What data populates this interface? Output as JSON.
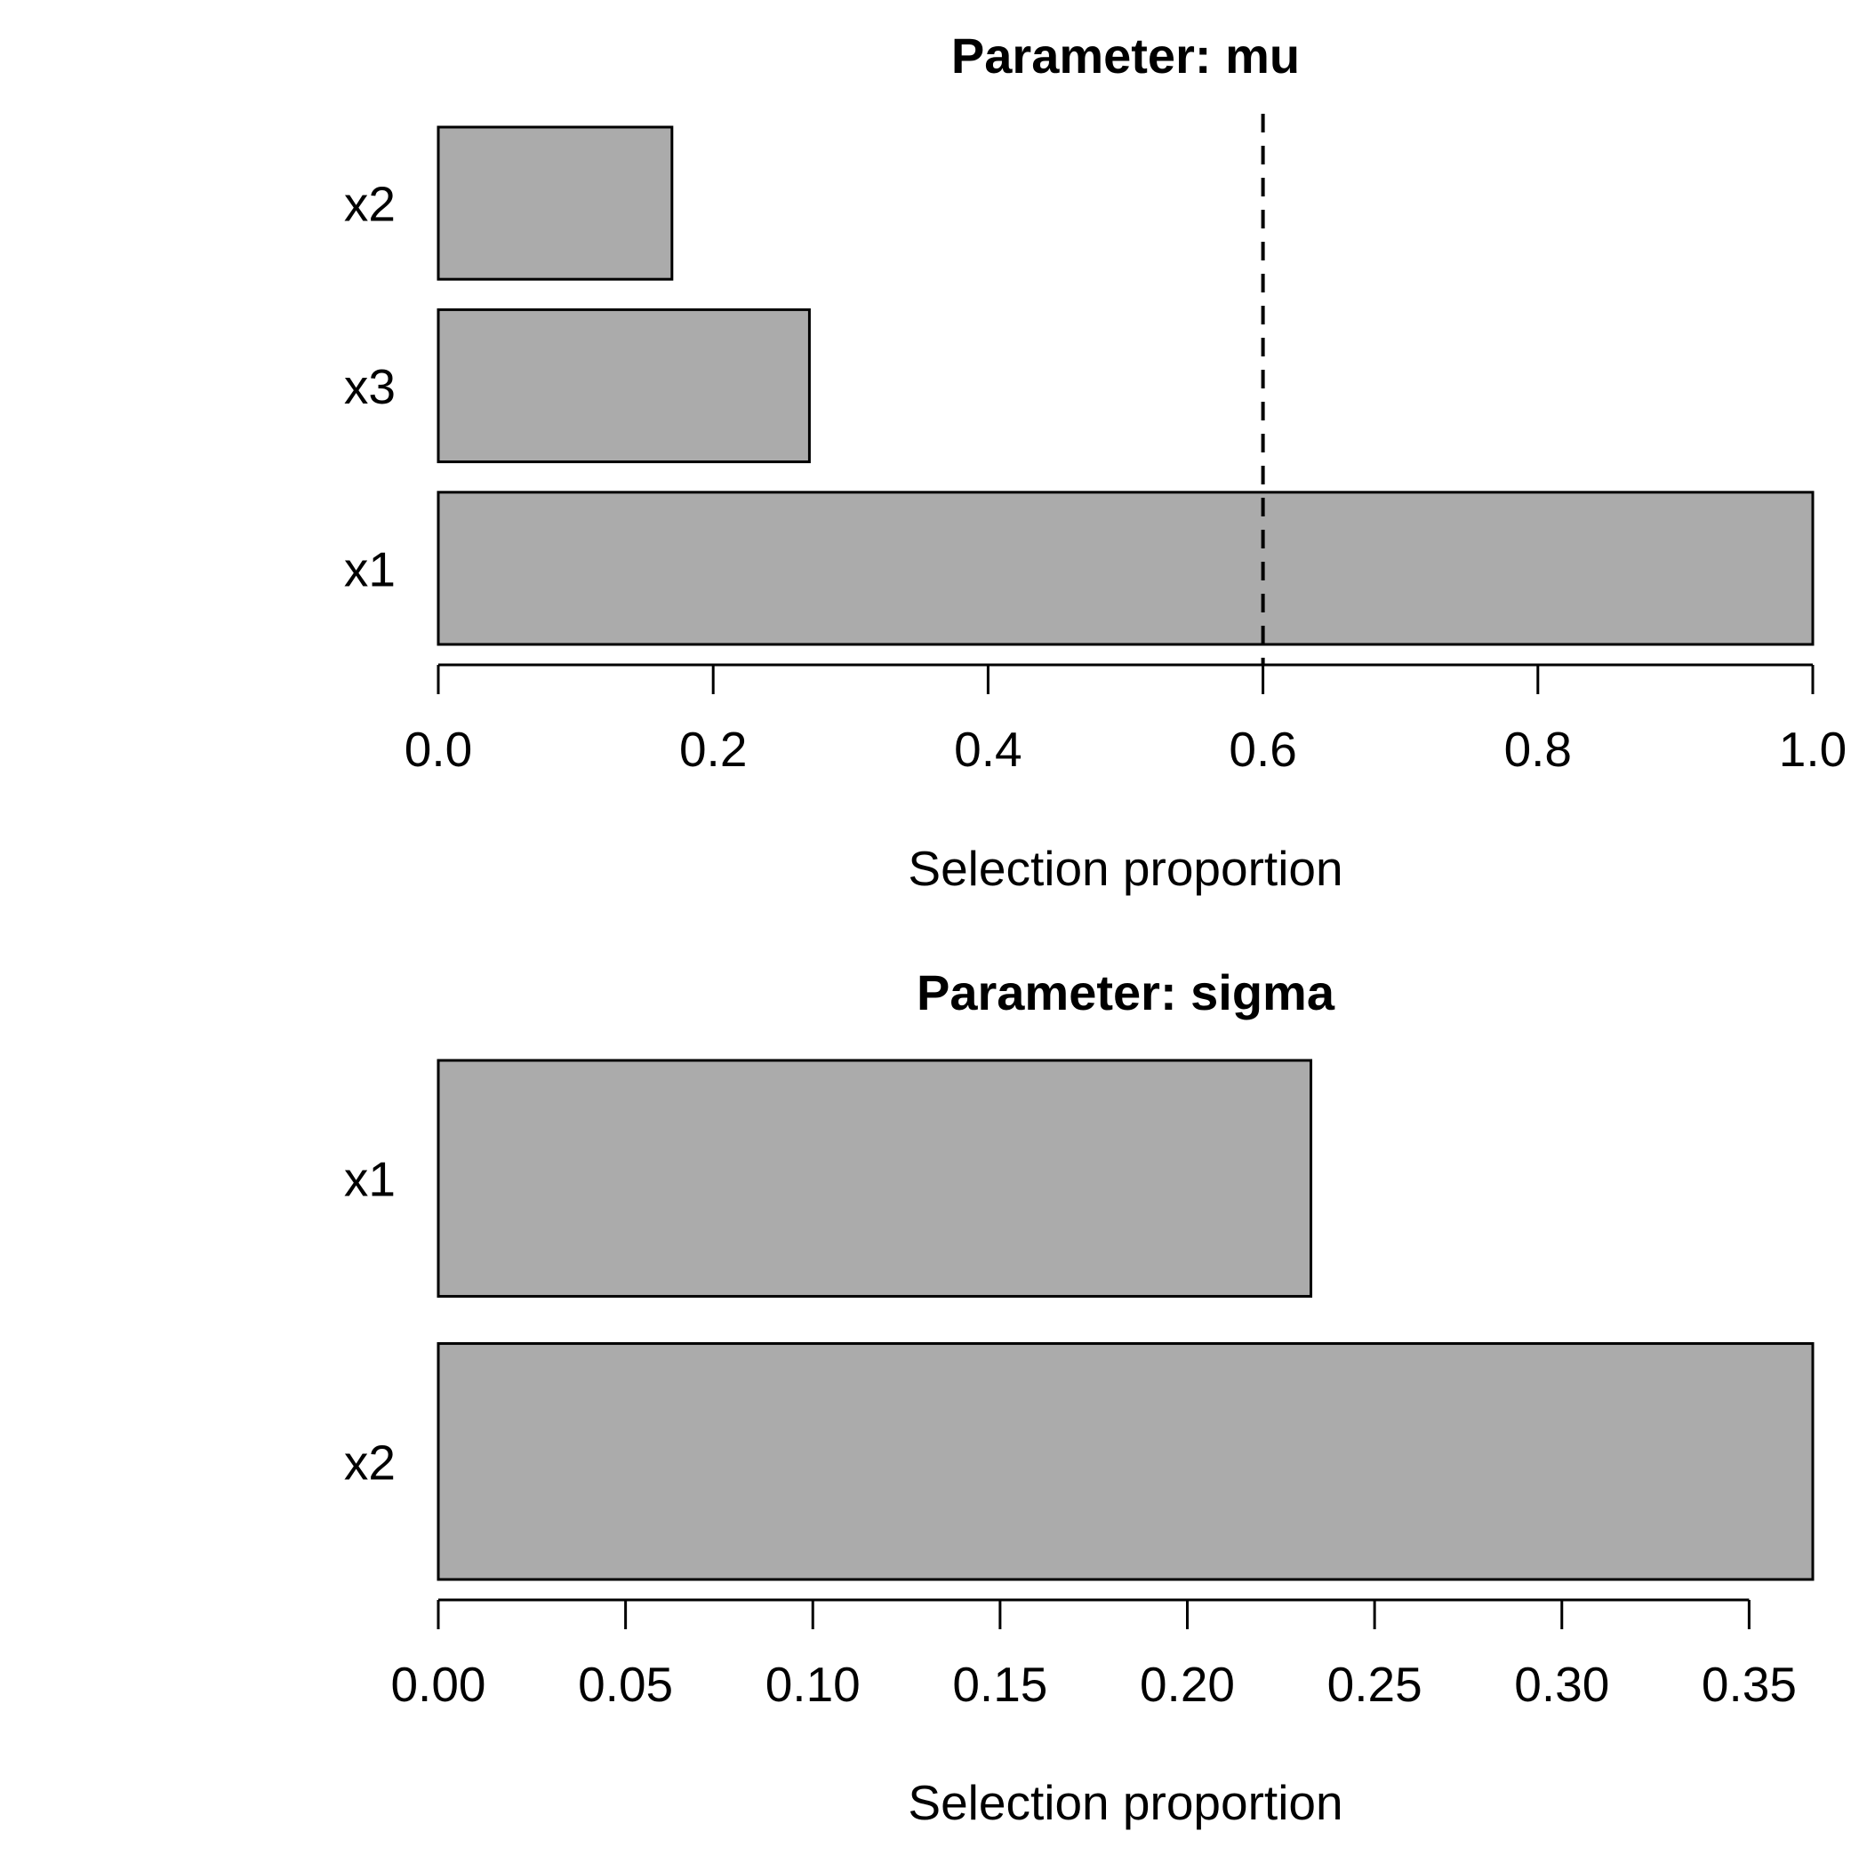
{
  "figure": {
    "background_color": "#ffffff",
    "text_color": "#000000"
  },
  "chart_data": [
    {
      "type": "bar",
      "orientation": "horizontal",
      "title": "Parameter: mu",
      "xlabel": "Selection proportion",
      "categories": [
        "x2",
        "x3",
        "x1"
      ],
      "values": [
        0.17,
        0.27,
        1.0
      ],
      "xlim": [
        0,
        1.0
      ],
      "xtick_values": [
        0.0,
        0.2,
        0.4,
        0.6,
        0.8,
        1.0
      ],
      "xtick_labels": [
        "0.0",
        "0.2",
        "0.4",
        "0.6",
        "0.8",
        "1.0"
      ],
      "threshold_line": {
        "value": 0.6,
        "style": "dashed",
        "color": "#000000"
      },
      "bar_fill": "#ABABAB",
      "bar_border": "#000000",
      "grid": false,
      "legend": null
    },
    {
      "type": "bar",
      "orientation": "horizontal",
      "title": "Parameter: sigma",
      "xlabel": "Selection proportion",
      "categories": [
        "x1",
        "x2"
      ],
      "values": [
        0.233,
        0.367
      ],
      "xlim": [
        0,
        0.367
      ],
      "xtick_values": [
        0.0,
        0.05,
        0.1,
        0.15,
        0.2,
        0.25,
        0.3,
        0.35
      ],
      "xtick_labels": [
        "0.00",
        "0.05",
        "0.10",
        "0.15",
        "0.20",
        "0.25",
        "0.30",
        "0.35"
      ],
      "threshold_line": null,
      "bar_fill": "#ABABAB",
      "bar_border": "#000000",
      "grid": false,
      "legend": null
    }
  ]
}
